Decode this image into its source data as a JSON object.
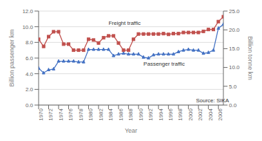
{
  "chart_data": {
    "type": "line",
    "x": [
      1970,
      1971,
      1972,
      1973,
      1974,
      1975,
      1976,
      1977,
      1978,
      1979,
      1980,
      1981,
      1982,
      1983,
      1984,
      1985,
      1986,
      1987,
      1988,
      1989,
      1990,
      1991,
      1992,
      1993,
      1994,
      1995,
      1996,
      1997,
      1998,
      1999,
      2000,
      2001,
      2002,
      2003,
      2004,
      2005,
      2006,
      2007
    ],
    "series": [
      {
        "color": "#4472c4",
        "marker": "triangle",
        "values": [
          4.7,
          4.1,
          4.5,
          4.6,
          5.6,
          5.6,
          5.6,
          5.6,
          5.5,
          5.5,
          7.1,
          7.1,
          7.1,
          7.1,
          7.1,
          6.3,
          6.5,
          6.6,
          6.5,
          6.5,
          6.5,
          6.1,
          6.0,
          6.4,
          6.5,
          6.5,
          6.5,
          6.5,
          6.8,
          7.0,
          7.1,
          7.0,
          7.0,
          6.6,
          6.7,
          7.0,
          9.8,
          10.3
        ]
      },
      {
        "color": "#c0504d",
        "marker": "square",
        "axis": "y2",
        "values": [
          17.5,
          15.6,
          18.2,
          19.5,
          19.5,
          16.2,
          16.2,
          14.6,
          14.6,
          14.6,
          17.5,
          17.3,
          16.5,
          17.9,
          18.4,
          18.4,
          16.5,
          14.6,
          14.6,
          17.5,
          18.9,
          18.9,
          18.9,
          18.9,
          18.9,
          19.0,
          18.8,
          19.0,
          19.0,
          19.3,
          19.3,
          19.3,
          19.3,
          19.6,
          20.1,
          20.1,
          22.2,
          23.5
        ]
      }
    ],
    "x_label": "Year",
    "y_label": "Billion passenger km",
    "y2_label": "Billion tonne km",
    "xlim": [
      1970,
      2007
    ],
    "xticks": [
      1970,
      1972,
      1974,
      1976,
      1978,
      1980,
      1982,
      1984,
      1986,
      1988,
      1990,
      1992,
      1994,
      1996,
      1998,
      2000,
      2002,
      2004,
      2006
    ],
    "ylim": [
      0.0,
      12.0
    ],
    "yticks": [
      {
        "value": 0,
        "label": "0.0"
      },
      {
        "value": 2,
        "label": "2.0"
      },
      {
        "value": 4,
        "label": "4.0"
      },
      {
        "value": 6,
        "label": "6.0"
      },
      {
        "value": 8,
        "label": "8.0"
      },
      {
        "value": 10,
        "label": "10.0"
      },
      {
        "value": 12,
        "label": "12.0"
      }
    ],
    "y2lim": [
      0.0,
      25.0
    ],
    "y2ticks": [
      {
        "value": 0,
        "label": "0.0"
      },
      {
        "value": 5,
        "label": "5.0"
      },
      {
        "value": 10,
        "label": "10.0"
      },
      {
        "value": 15,
        "label": "15.0"
      },
      {
        "value": 20,
        "label": "20.0"
      },
      {
        "value": 25,
        "label": "25.0"
      }
    ],
    "grid": true,
    "annotations": [
      {
        "text": "Freight traffic",
        "x": 1984,
        "y": 10.5
      },
      {
        "text": "Passenger traffic",
        "x": 1991,
        "y": 5.3
      },
      {
        "text": "Source: SIKA",
        "x": 2001.5,
        "y": 0.6
      }
    ]
  }
}
